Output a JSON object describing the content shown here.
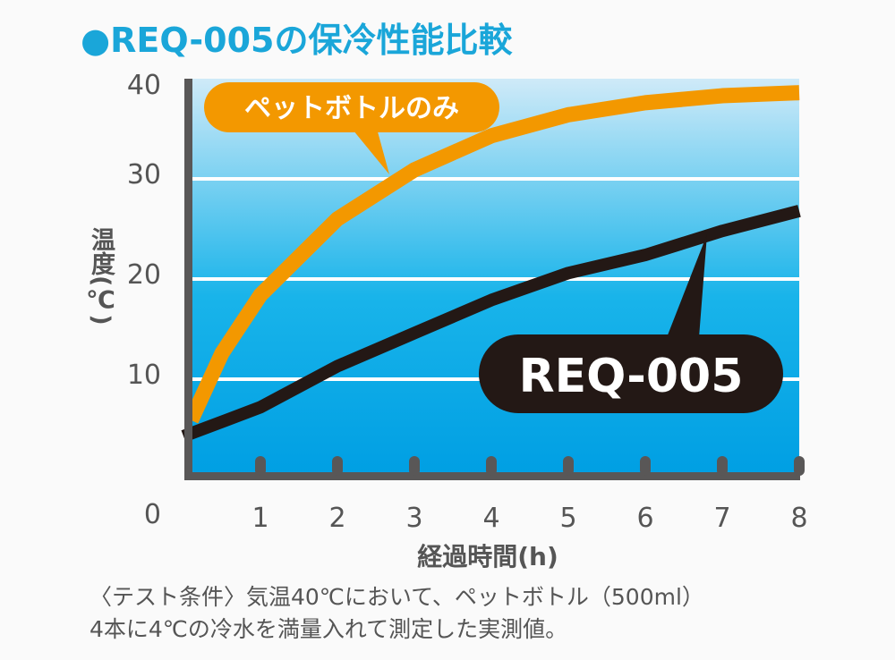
{
  "chart_data": {
    "type": "line",
    "title": "●REQ-005の保冷性能比較",
    "xlabel": "経過時間(h)",
    "ylabel": "温度(℃)",
    "xlim": [
      0,
      8
    ],
    "ylim": [
      0,
      40
    ],
    "x_ticks": [
      "1",
      "2",
      "3",
      "4",
      "5",
      "6",
      "7",
      "8"
    ],
    "y_ticks": [
      "0",
      "10",
      "20",
      "30",
      "40"
    ],
    "grid": true,
    "series": [
      {
        "name": "ペットボトルのみ",
        "color": "#f39800",
        "x": [
          0.1,
          0.5,
          1,
          2,
          3,
          4,
          5,
          6,
          7,
          8
        ],
        "values": [
          5.9,
          12.6,
          18.4,
          26,
          30.9,
          34.3,
          36.4,
          37.6,
          38.3,
          38.6
        ]
      },
      {
        "name": "REQ-005",
        "color": "#231815",
        "x": [
          0,
          1,
          2,
          3,
          4,
          5,
          6,
          7,
          8
        ],
        "values": [
          4.3,
          7.2,
          11.3,
          14.6,
          17.9,
          20.6,
          22.4,
          24.8,
          26.8
        ]
      }
    ]
  },
  "notes": {
    "line1": "〈テスト条件〉気温40℃において、ペットボトル（500ml）",
    "line2": "4本に4℃の冷水を満量入れて測定した実測値。"
  },
  "colors": {
    "title": "#1aa6d9",
    "axis": "#595757"
  }
}
